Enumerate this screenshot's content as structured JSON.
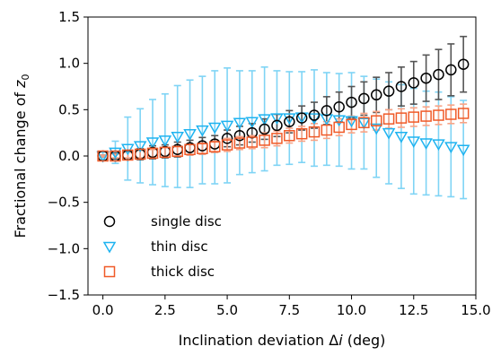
{
  "chart_data": {
    "type": "scatter",
    "title": "",
    "xlabel": "Inclination deviation Δi (deg)",
    "ylabel": "Fractional change of z0",
    "xlim": [
      -0.6,
      15.0
    ],
    "ylim": [
      -1.5,
      1.5
    ],
    "xticks": [
      0.0,
      2.5,
      5.0,
      7.5,
      10.0,
      12.5,
      15.0
    ],
    "xtick_labels": [
      "0.0",
      "2.5",
      "5.0",
      "7.5",
      "10.0",
      "12.5",
      "15.0"
    ],
    "yticks": [
      -1.5,
      -1.0,
      -0.5,
      0.0,
      0.5,
      1.0,
      1.5
    ],
    "ytick_labels": [
      "−1.5",
      "−1.0",
      "−0.5",
      "0.0",
      "0.5",
      "1.0",
      "1.5"
    ],
    "grid": false,
    "legend": {
      "placement": "lower-left",
      "entries": [
        "single disc",
        "thin disc",
        "thick disc"
      ]
    },
    "x": [
      0.0,
      0.5,
      1.0,
      1.5,
      2.0,
      2.5,
      3.0,
      3.5,
      4.0,
      4.5,
      5.0,
      5.5,
      6.0,
      6.5,
      7.0,
      7.5,
      8.0,
      8.5,
      9.0,
      9.5,
      10.0,
      10.5,
      11.0,
      11.5,
      12.0,
      12.5,
      13.0,
      13.5,
      14.0,
      14.5
    ],
    "series": [
      {
        "name": "single disc",
        "marker": "circle",
        "color": "#000000",
        "errcolor": "#555555",
        "values": [
          0.0,
          0.0,
          0.01,
          0.02,
          0.04,
          0.05,
          0.07,
          0.09,
          0.11,
          0.13,
          0.19,
          0.22,
          0.25,
          0.29,
          0.33,
          0.37,
          0.41,
          0.44,
          0.49,
          0.53,
          0.58,
          0.62,
          0.66,
          0.7,
          0.75,
          0.79,
          0.84,
          0.88,
          0.93,
          0.99
        ],
        "errors": [
          0.01,
          0.03,
          0.05,
          0.06,
          0.07,
          0.07,
          0.08,
          0.08,
          0.09,
          0.09,
          0.09,
          0.1,
          0.1,
          0.11,
          0.12,
          0.12,
          0.13,
          0.14,
          0.15,
          0.16,
          0.17,
          0.18,
          0.19,
          0.2,
          0.21,
          0.23,
          0.25,
          0.27,
          0.28,
          0.3
        ]
      },
      {
        "name": "thin disc",
        "marker": "triangle-down",
        "color": "#1eb3f0",
        "errcolor": "#7fd4f5",
        "values": [
          0.0,
          0.04,
          0.08,
          0.11,
          0.15,
          0.17,
          0.21,
          0.24,
          0.28,
          0.31,
          0.33,
          0.36,
          0.37,
          0.4,
          0.41,
          0.41,
          0.42,
          0.41,
          0.4,
          0.39,
          0.38,
          0.36,
          0.3,
          0.25,
          0.21,
          0.16,
          0.14,
          0.13,
          0.1,
          0.07
        ],
        "errors": [
          0.05,
          0.12,
          0.34,
          0.4,
          0.46,
          0.5,
          0.55,
          0.58,
          0.58,
          0.61,
          0.62,
          0.56,
          0.55,
          0.56,
          0.51,
          0.5,
          0.49,
          0.52,
          0.5,
          0.5,
          0.52,
          0.5,
          0.53,
          0.55,
          0.56,
          0.57,
          0.56,
          0.56,
          0.54,
          0.53
        ]
      },
      {
        "name": "thick disc",
        "marker": "square",
        "color": "#f05a28",
        "errcolor": "#f7a487",
        "values": [
          0.0,
          0.0,
          0.01,
          0.02,
          0.03,
          0.04,
          0.05,
          0.07,
          0.08,
          0.1,
          0.12,
          0.14,
          0.15,
          0.17,
          0.19,
          0.22,
          0.24,
          0.26,
          0.28,
          0.31,
          0.34,
          0.36,
          0.38,
          0.4,
          0.41,
          0.42,
          0.43,
          0.44,
          0.45,
          0.46
        ],
        "errors": [
          0.01,
          0.02,
          0.03,
          0.04,
          0.04,
          0.05,
          0.05,
          0.06,
          0.06,
          0.06,
          0.07,
          0.07,
          0.07,
          0.08,
          0.08,
          0.08,
          0.08,
          0.09,
          0.09,
          0.09,
          0.09,
          0.1,
          0.1,
          0.1,
          0.1,
          0.1,
          0.1,
          0.1,
          0.1,
          0.1
        ]
      }
    ]
  }
}
